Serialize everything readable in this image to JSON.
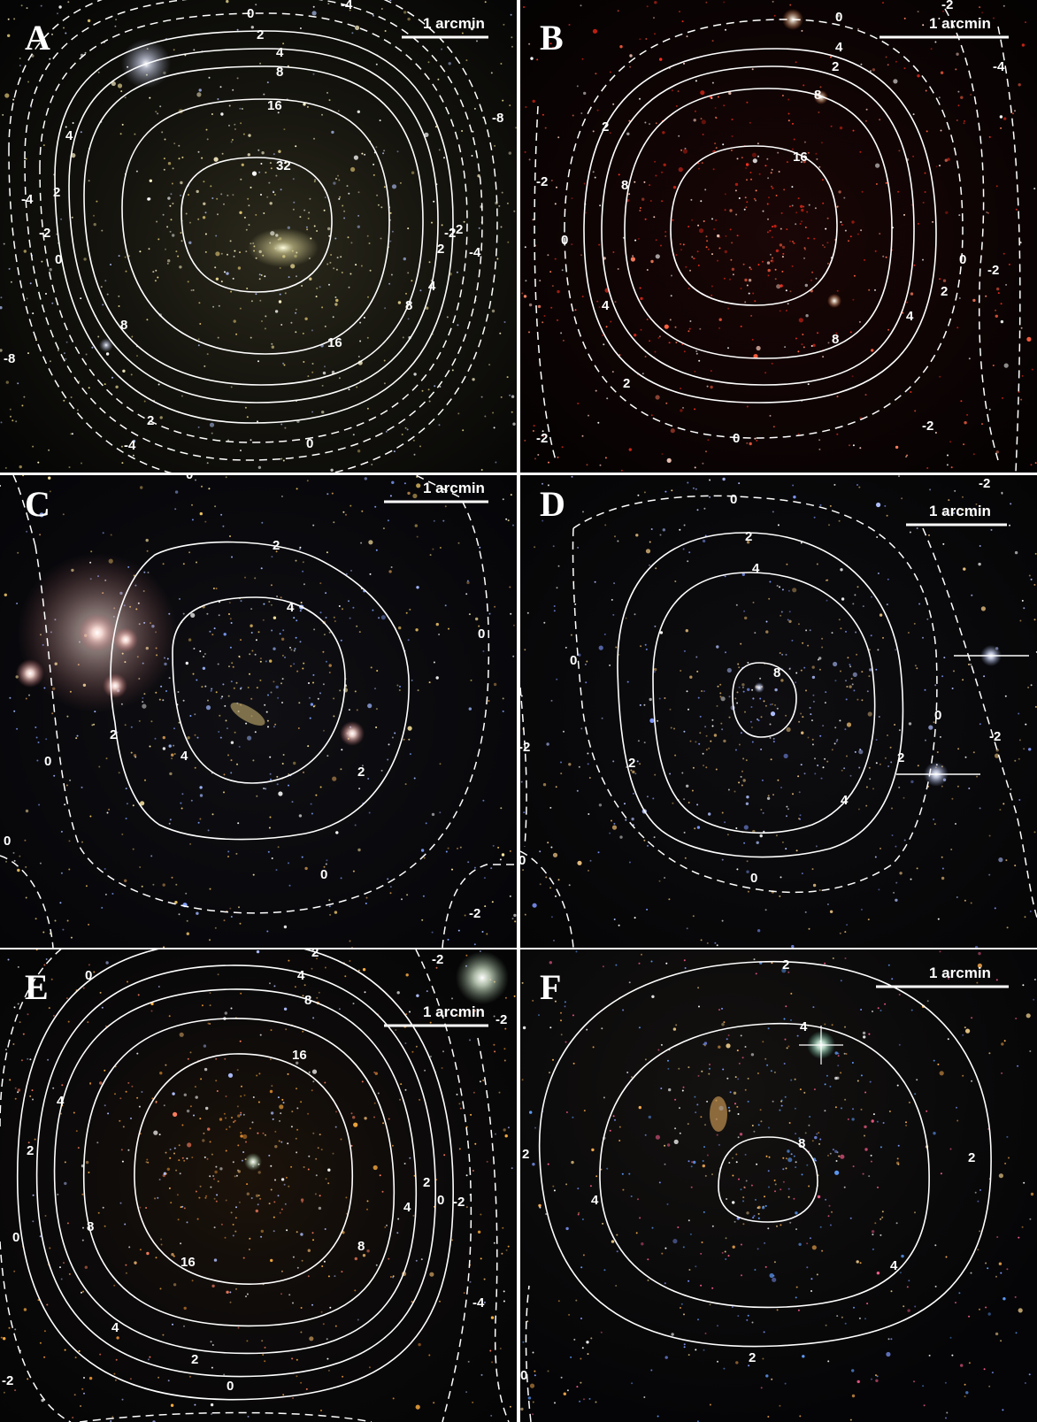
{
  "panels": [
    {
      "label": "A",
      "scale": "1 arcmin",
      "solid_labels": [
        "16",
        "8",
        "4",
        "2",
        "32",
        "16",
        "8",
        "4",
        "2",
        "4",
        "2",
        "8"
      ],
      "dashed_labels": [
        "0",
        "-2",
        "-4",
        "0",
        "-2",
        "-4",
        "-8",
        "0",
        "-2",
        "-4",
        "-8",
        "0",
        "-4"
      ]
    },
    {
      "label": "B",
      "scale": "1 arcmin",
      "solid_labels": [
        "16",
        "8",
        "4",
        "2",
        "8",
        "2",
        "4",
        "8",
        "4",
        "2"
      ],
      "dashed_labels": [
        "0",
        "-2",
        "-4",
        "0",
        "-2",
        "-2",
        "-2",
        "0",
        "-2",
        "0"
      ]
    },
    {
      "label": "C",
      "scale": "1 arcmin",
      "solid_labels": [
        "4",
        "4",
        "2",
        "2",
        "2"
      ],
      "dashed_labels": [
        "0",
        "0",
        "0",
        "0",
        "0",
        "-2"
      ]
    },
    {
      "label": "D",
      "scale": "1 arcmin",
      "solid_labels": [
        "8",
        "4",
        "4",
        "2",
        "2",
        "2"
      ],
      "dashed_labels": [
        "0",
        "0",
        "0",
        "0",
        "0",
        "-2",
        "-2",
        "-2"
      ]
    },
    {
      "label": "E",
      "scale": "1 arcmin",
      "solid_labels": [
        "16",
        "16",
        "8",
        "8",
        "8",
        "4",
        "4",
        "4",
        "4",
        "2",
        "2",
        "2",
        "2"
      ],
      "dashed_labels": [
        "0",
        "-2",
        "0",
        "0",
        "0",
        "-2",
        "-2",
        "-4",
        "-2"
      ]
    },
    {
      "label": "F",
      "scale": "1 arcmin",
      "solid_labels": [
        "8",
        "4",
        "4",
        "4",
        "2",
        "2",
        "2",
        "2"
      ],
      "dashed_labels": [
        "0"
      ]
    }
  ]
}
